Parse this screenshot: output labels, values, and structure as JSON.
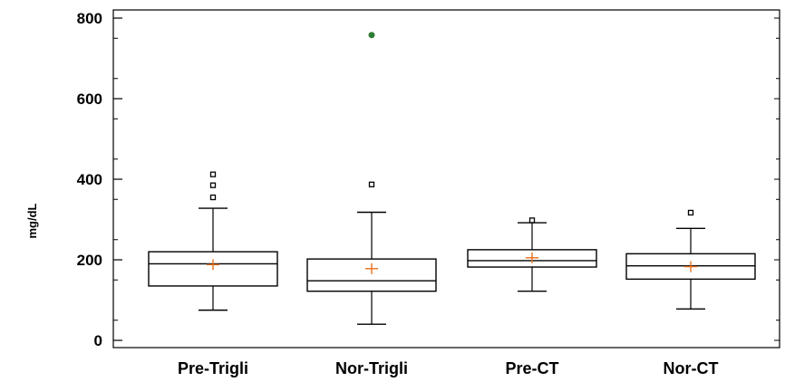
{
  "chart_data": {
    "type": "box",
    "title": "",
    "xlabel": "",
    "ylabel": "mg/dL",
    "ylim": [
      0,
      800
    ],
    "yticks": [
      "0",
      "200",
      "400",
      "600",
      "800"
    ],
    "grid": false,
    "categories": [
      "Pre-Trigli",
      "Nor-Trigli",
      "Pre-CT",
      "Nor-CT"
    ],
    "boxes": [
      {
        "category": "Pre-Trigli",
        "whisker_low": 75,
        "q1": 135,
        "median": 190,
        "q3": 220,
        "whisker_high": 328,
        "mean": 188,
        "outliers": [
          {
            "value": 355,
            "kind": "mild"
          },
          {
            "value": 385,
            "kind": "mild"
          },
          {
            "value": 412,
            "kind": "mild"
          }
        ]
      },
      {
        "category": "Nor-Trigli",
        "whisker_low": 40,
        "q1": 122,
        "median": 148,
        "q3": 202,
        "whisker_high": 318,
        "mean": 178,
        "outliers": [
          {
            "value": 387,
            "kind": "mild"
          },
          {
            "value": 758,
            "kind": "extreme"
          }
        ]
      },
      {
        "category": "Pre-CT",
        "whisker_low": 122,
        "q1": 182,
        "median": 198,
        "q3": 225,
        "whisker_high": 292,
        "mean": 205,
        "outliers": [
          {
            "value": 298,
            "kind": "mild"
          }
        ]
      },
      {
        "category": "Nor-CT",
        "whisker_low": 78,
        "q1": 152,
        "median": 185,
        "q3": 215,
        "whisker_high": 278,
        "mean": 183,
        "outliers": [
          {
            "value": 317,
            "kind": "mild"
          }
        ]
      }
    ],
    "colors": {
      "box": "#000000",
      "mean_marker": "#e8701c",
      "mild_outlier": "#000000",
      "extreme_outlier": "#2e7d32"
    }
  }
}
